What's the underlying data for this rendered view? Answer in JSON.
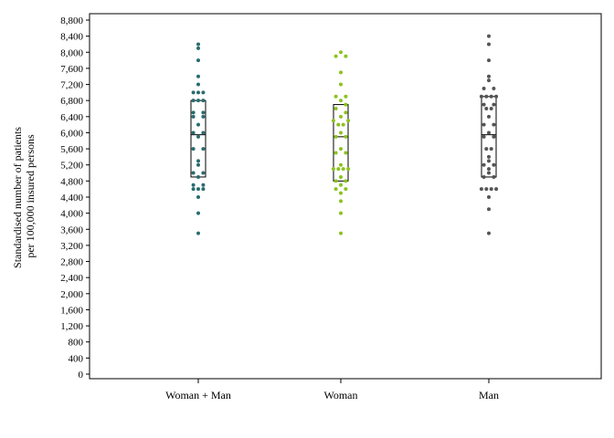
{
  "chart_data": {
    "type": "box-strip",
    "title": "",
    "ylabel_lines": [
      "Standardised number of patients",
      "per 100,000 insured persons"
    ],
    "xlabel": "",
    "ylim": [
      0,
      8800
    ],
    "ytick_step": 400,
    "grid": false,
    "categories": [
      "Woman + Man",
      "Woman",
      "Man"
    ],
    "colors": [
      "#2a6b6e",
      "#8cc21f",
      "#555555"
    ],
    "series": [
      {
        "name": "Woman + Man",
        "box": {
          "q1": 4900,
          "median": 5950,
          "q3": 6800
        },
        "points": [
          [
            0.0,
            8200
          ],
          [
            0.0,
            8100
          ],
          [
            0.0,
            7800
          ],
          [
            0.0,
            7400
          ],
          [
            0.0,
            7200
          ],
          [
            -0.06,
            7000
          ],
          [
            0.0,
            7000
          ],
          [
            0.06,
            7000
          ],
          [
            -0.06,
            6800
          ],
          [
            0.0,
            6800
          ],
          [
            0.06,
            6800
          ],
          [
            -0.06,
            6500
          ],
          [
            0.06,
            6500
          ],
          [
            -0.06,
            6400
          ],
          [
            0.06,
            6400
          ],
          [
            0.0,
            6200
          ],
          [
            -0.06,
            6000
          ],
          [
            0.06,
            6000
          ],
          [
            0.0,
            5900
          ],
          [
            -0.06,
            5600
          ],
          [
            0.06,
            5600
          ],
          [
            0.0,
            5300
          ],
          [
            0.0,
            5200
          ],
          [
            -0.06,
            5000
          ],
          [
            0.06,
            5000
          ],
          [
            0.0,
            4900
          ],
          [
            -0.06,
            4700
          ],
          [
            0.06,
            4700
          ],
          [
            -0.06,
            4600
          ],
          [
            0.0,
            4600
          ],
          [
            0.06,
            4600
          ],
          [
            0.0,
            4400
          ],
          [
            0.0,
            4000
          ],
          [
            0.0,
            3500
          ]
        ]
      },
      {
        "name": "Woman",
        "box": {
          "q1": 4800,
          "median": 5900,
          "q3": 6700
        },
        "points": [
          [
            0.0,
            8000
          ],
          [
            -0.06,
            7900
          ],
          [
            0.06,
            7900
          ],
          [
            0.0,
            7500
          ],
          [
            0.0,
            7200
          ],
          [
            -0.06,
            6900
          ],
          [
            0.06,
            6900
          ],
          [
            0.0,
            6800
          ],
          [
            0.06,
            6700
          ],
          [
            -0.06,
            6600
          ],
          [
            0.06,
            6500
          ],
          [
            0.0,
            6400
          ],
          [
            -0.09,
            6300
          ],
          [
            0.09,
            6300
          ],
          [
            -0.03,
            6200
          ],
          [
            0.03,
            6200
          ],
          [
            0.0,
            6000
          ],
          [
            -0.06,
            5900
          ],
          [
            0.06,
            5900
          ],
          [
            0.0,
            5600
          ],
          [
            -0.06,
            5500
          ],
          [
            0.06,
            5500
          ],
          [
            0.0,
            5200
          ],
          [
            -0.09,
            5100
          ],
          [
            0.09,
            5100
          ],
          [
            -0.03,
            5100
          ],
          [
            0.03,
            5100
          ],
          [
            0.0,
            4900
          ],
          [
            -0.06,
            4800
          ],
          [
            0.06,
            4800
          ],
          [
            0.0,
            4700
          ],
          [
            -0.06,
            4600
          ],
          [
            0.06,
            4600
          ],
          [
            0.0,
            4500
          ],
          [
            0.0,
            4300
          ],
          [
            0.0,
            4000
          ],
          [
            0.0,
            3500
          ]
        ]
      },
      {
        "name": "Man",
        "box": {
          "q1": 4900,
          "median": 5950,
          "q3": 6900
        },
        "points": [
          [
            0.0,
            8400
          ],
          [
            0.0,
            8200
          ],
          [
            0.0,
            7800
          ],
          [
            0.0,
            7400
          ],
          [
            0.0,
            7300
          ],
          [
            -0.06,
            7100
          ],
          [
            0.06,
            7100
          ],
          [
            -0.09,
            6900
          ],
          [
            0.09,
            6900
          ],
          [
            -0.03,
            6900
          ],
          [
            0.03,
            6900
          ],
          [
            -0.06,
            6700
          ],
          [
            0.06,
            6700
          ],
          [
            -0.03,
            6600
          ],
          [
            0.03,
            6600
          ],
          [
            0.0,
            6400
          ],
          [
            -0.06,
            6200
          ],
          [
            0.06,
            6200
          ],
          [
            0.0,
            6000
          ],
          [
            -0.06,
            5900
          ],
          [
            0.06,
            5900
          ],
          [
            -0.03,
            5600
          ],
          [
            0.03,
            5600
          ],
          [
            0.0,
            5400
          ],
          [
            0.0,
            5300
          ],
          [
            -0.06,
            5200
          ],
          [
            0.06,
            5200
          ],
          [
            0.0,
            5100
          ],
          [
            0.0,
            5000
          ],
          [
            -0.06,
            4900
          ],
          [
            0.06,
            4900
          ],
          [
            -0.09,
            4600
          ],
          [
            0.09,
            4600
          ],
          [
            -0.03,
            4600
          ],
          [
            0.03,
            4600
          ],
          [
            0.0,
            4400
          ],
          [
            0.0,
            4100
          ],
          [
            0.0,
            3500
          ]
        ]
      }
    ]
  }
}
